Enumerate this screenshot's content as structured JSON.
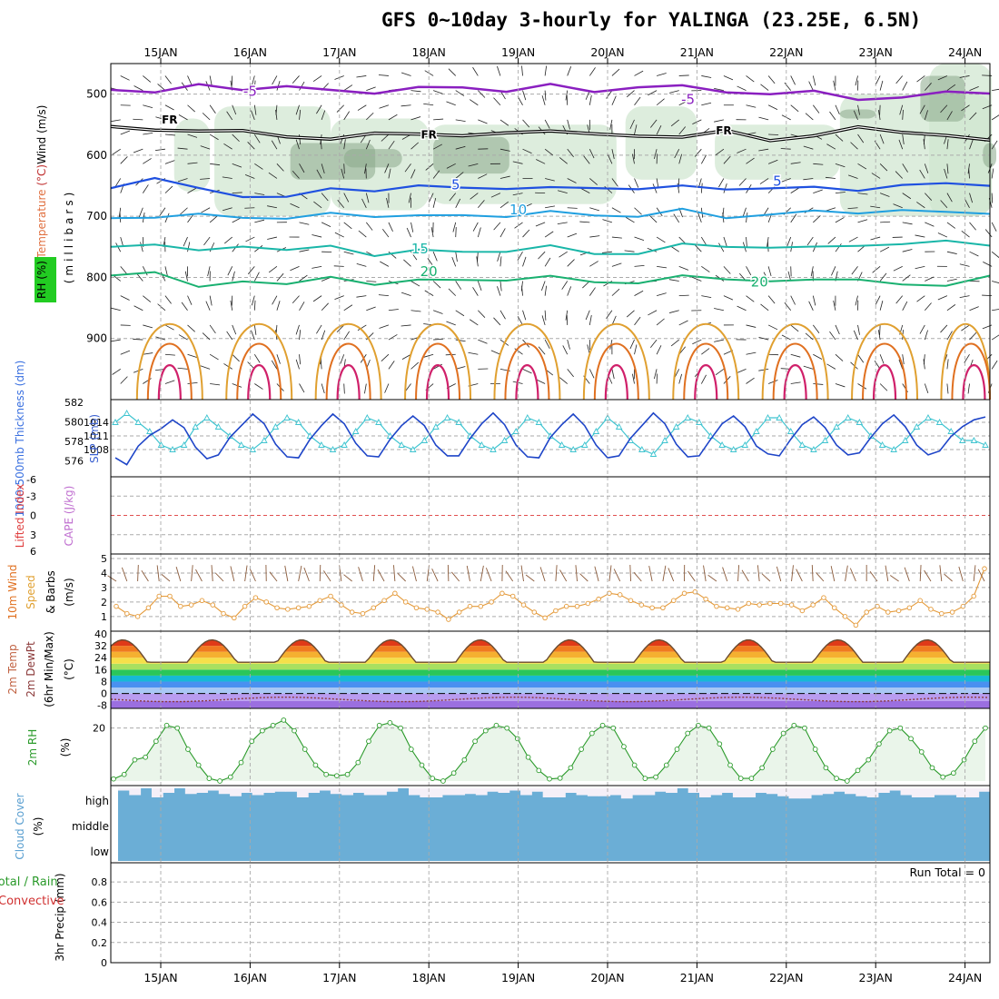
{
  "title": "GFS 0~10day 3-hourly for YALINGA (23.25E, 6.5N)",
  "chart_data": {
    "type": "meteogram",
    "days": [
      "15JAN",
      "16JAN",
      "17JAN",
      "18JAN",
      "19JAN",
      "20JAN",
      "21JAN",
      "22JAN",
      "23JAN",
      "24JAN"
    ],
    "colors": {
      "purple": "#8a1fc0",
      "black": "#000000",
      "blue": "#1f50e0",
      "lightblue": "#1f9fe0",
      "teal": "#19b6a8",
      "green": "#19b070",
      "orange": "#e0a030",
      "darkorange": "#e07020",
      "magenta": "#d0206a",
      "rhshade": "#cfe6cf",
      "rhdark": "#8aa88a",
      "slp": "#3fc4d0",
      "thick": "#1e45c8",
      "wind": "#e49a3a",
      "rh2m": "#2a9a2a",
      "cloud": "#6baed6",
      "cloudbg": "#f5f0f8",
      "refline": "#e05050"
    },
    "upper_air": {
      "ylabel_parts": [
        "RH (%)",
        "Temperature (°C)",
        "Wind (m/s)",
        "(millibars)"
      ],
      "yticks": [
        500,
        600,
        700,
        800,
        900
      ],
      "ylim": [
        1000,
        450
      ],
      "contour_labels": [
        {
          "text": "-5",
          "t": 1.0,
          "p": 503,
          "color": "purple"
        },
        {
          "text": "-5",
          "t": 5.9,
          "p": 516,
          "color": "purple"
        },
        {
          "text": "FR",
          "t": 0.1,
          "p": 548,
          "color": "black"
        },
        {
          "text": "FR",
          "t": 3.0,
          "p": 573,
          "color": "black"
        },
        {
          "text": "FR",
          "t": 6.3,
          "p": 566,
          "color": "black"
        },
        {
          "text": "5",
          "t": 3.3,
          "p": 656,
          "color": "blue"
        },
        {
          "text": "5",
          "t": 6.9,
          "p": 650,
          "color": "blue"
        },
        {
          "text": "10",
          "t": 4.0,
          "p": 697,
          "color": "lightblue"
        },
        {
          "text": "15",
          "t": 2.9,
          "p": 761,
          "color": "teal"
        },
        {
          "text": "20",
          "t": 3.0,
          "p": 798,
          "color": "green"
        },
        {
          "text": "20",
          "t": 6.7,
          "p": 815,
          "color": "green"
        }
      ],
      "isotherms": [
        {
          "color": "purple",
          "p": [
            493,
            494,
            488,
            491,
            486,
            497,
            495,
            490,
            491,
            492,
            487,
            496,
            486,
            490,
            494,
            500,
            498,
            505,
            508,
            497,
            495
          ],
          "lw": 2.5
        },
        {
          "color": "blue",
          "p": [
            654,
            634,
            658,
            666,
            667,
            658,
            655,
            651,
            655,
            651,
            656,
            653,
            653,
            654,
            653,
            654,
            655,
            654,
            651,
            647,
            646
          ],
          "lw": 2.2
        },
        {
          "color": "lightblue",
          "p": [
            703,
            699,
            700,
            700,
            703,
            698,
            697,
            700,
            700,
            697,
            695,
            698,
            698,
            692,
            700,
            697,
            694,
            691,
            692,
            694,
            692
          ],
          "lw": 2
        },
        {
          "color": "teal",
          "p": [
            750,
            743,
            760,
            747,
            754,
            752,
            761,
            756,
            760,
            754,
            751,
            761,
            759,
            749,
            747,
            751,
            753,
            744,
            748,
            741,
            744
          ],
          "lw": 2
        },
        {
          "color": "green",
          "p": [
            797,
            788,
            820,
            804,
            810,
            803,
            808,
            805,
            806,
            801,
            801,
            807,
            807,
            801,
            800,
            806,
            807,
            799,
            814,
            815,
            793
          ],
          "lw": 2
        }
      ],
      "freezing_level": [
        553,
        553,
        562,
        565,
        567,
        569,
        568,
        569,
        563,
        561,
        566,
        566,
        563,
        571,
        565,
        574,
        563,
        557,
        567,
        563,
        572
      ]
    },
    "slp_thickness": {
      "ylabel_left": "1000-500mb Thickness (dm)",
      "ylabel_right": "SLP (mb)",
      "thickness_ticks": [
        576,
        578,
        580,
        582
      ],
      "slp_ticks": [
        1008,
        1011,
        1014
      ],
      "slp": [
        1014,
        1016,
        1014,
        1012,
        1009,
        1008,
        1009,
        1013,
        1015,
        1013,
        1011,
        1009,
        1008,
        1010,
        1013,
        1015,
        1014,
        1011,
        1009,
        1008,
        1009,
        1012,
        1015,
        1014,
        1011,
        1009,
        1008,
        1010,
        1013,
        1015,
        1014,
        1011,
        1009,
        1008,
        1010,
        1012,
        1015,
        1014,
        1011,
        1009,
        1008,
        1009,
        1012,
        1015,
        1013,
        1010,
        1008,
        1007,
        1010,
        1013,
        1015,
        1014,
        1011,
        1009,
        1008,
        1009,
        1012,
        1015,
        1015,
        1012,
        1009,
        1008,
        1010,
        1013,
        1015,
        1014,
        1011,
        1009,
        1008,
        1010,
        1013,
        1015,
        1014,
        1012,
        1010,
        1010,
        1009
      ],
      "thickness": [
        576.3,
        575.6,
        577.5,
        578.6,
        579.3,
        580.2,
        579.4,
        577.4,
        576.2,
        576.6,
        578.4,
        579.6,
        580.8,
        579.8,
        577.7,
        576.4,
        576.3,
        578.2,
        579.6,
        580.8,
        579.8,
        577.8,
        576.5,
        576.4,
        578.2,
        579.6,
        580.6,
        579.6,
        577.6,
        576.5,
        576.5,
        578.3,
        579.8,
        580.9,
        579.7,
        577.6,
        576.4,
        576.3,
        578.4,
        579.7,
        580.8,
        579.6,
        577.6,
        576.3,
        576.5,
        578.3,
        579.6,
        580.9,
        579.8,
        577.7,
        576.4,
        576.5,
        578.2,
        579.8,
        580.6,
        579.5,
        577.5,
        576.7,
        576.5,
        578.2,
        579.7,
        580.5,
        579.4,
        577.6,
        576.6,
        576.8,
        578.4,
        579.8,
        580.7,
        579.5,
        577.6,
        576.6,
        577.0,
        578.5,
        579.5,
        580.2,
        580.5
      ]
    },
    "cape_li": {
      "ylabel_left": "Lifted Index",
      "ylabel_right": "CAPE (J/kg)",
      "li_ticks": [
        "-6",
        "-3",
        "0",
        "3",
        "6"
      ]
    },
    "wind10m": {
      "ylabel": [
        "10m Wind",
        "Speed",
        "& Barbs",
        "(m/s)"
      ],
      "yticks": [
        1,
        2,
        3,
        4,
        5
      ],
      "speed": [
        1.7,
        1.2,
        1.0,
        1.6,
        2.4,
        2.4,
        1.7,
        1.8,
        2.1,
        1.8,
        1.2,
        0.9,
        1.7,
        2.3,
        2.0,
        1.6,
        1.5,
        1.6,
        1.7,
        2.1,
        2.4,
        1.8,
        1.3,
        1.2,
        1.6,
        2.1,
        2.6,
        2.0,
        1.6,
        1.5,
        1.3,
        0.8,
        1.3,
        1.7,
        1.7,
        2.0,
        2.6,
        2.4,
        1.8,
        1.3,
        0.9,
        1.4,
        1.7,
        1.7,
        1.9,
        2.2,
        2.6,
        2.5,
        2.1,
        1.8,
        1.6,
        1.6,
        2.1,
        2.6,
        2.7,
        2.2,
        1.7,
        1.6,
        1.5,
        1.9,
        1.8,
        1.9,
        1.9,
        1.8,
        1.4,
        1.8,
        2.3,
        1.6,
        1.0,
        0.4,
        1.3,
        1.7,
        1.3,
        1.4,
        1.6,
        2.1,
        1.5,
        1.2,
        1.3,
        1.7,
        2.4,
        4.3
      ]
    },
    "temp2m": {
      "ylabel": [
        "2m Temp",
        "2m DewPt",
        "(6hr Min/Max)",
        "(°C)"
      ],
      "yticks": [
        -8,
        0,
        8,
        16,
        24,
        32,
        40
      ],
      "bands": [
        {
          "from": -10,
          "to": -5,
          "color": "#9b6fe0"
        },
        {
          "from": -5,
          "to": 0,
          "color": "#b99cf0"
        },
        {
          "from": 0,
          "to": 4,
          "color": "#a9c8f5"
        },
        {
          "from": 4,
          "to": 8,
          "color": "#4a90f0"
        },
        {
          "from": 8,
          "to": 12,
          "color": "#17b9d6"
        },
        {
          "from": 12,
          "to": 16,
          "color": "#2ac65a"
        },
        {
          "from": 16,
          "to": 20,
          "color": "#a8e060"
        },
        {
          "from": 20,
          "to": 24,
          "color": "#f5e04a"
        },
        {
          "from": 24,
          "to": 28,
          "color": "#f5b030"
        },
        {
          "from": 28,
          "to": 32,
          "color": "#f07a20"
        },
        {
          "from": 32,
          "to": 36,
          "color": "#e03a18"
        },
        {
          "from": 36,
          "to": 40,
          "color": "#b01010"
        }
      ]
    },
    "rh2m": {
      "ylabel": [
        "2m RH",
        "(%)"
      ],
      "yticks": [
        20
      ],
      "values": [
        0.8,
        2.5,
        8,
        9,
        15,
        21,
        20,
        12,
        6,
        1,
        0,
        1.5,
        7,
        15,
        19,
        21,
        23,
        19,
        12,
        6,
        2.5,
        2,
        2.5,
        7,
        15,
        21,
        22,
        20,
        12,
        6,
        1,
        0,
        3,
        8,
        15,
        19,
        21,
        20,
        16,
        9,
        4,
        0.8,
        1.1,
        5,
        12,
        18,
        21,
        20,
        13,
        6,
        1,
        1.5,
        6,
        12,
        18,
        21,
        20,
        14,
        6,
        1,
        1,
        5,
        12,
        18,
        21,
        20,
        12,
        5,
        1,
        0,
        4,
        8,
        14,
        19,
        20,
        16,
        11,
        5,
        1.5,
        3,
        8,
        15,
        20
      ]
    },
    "cloud": {
      "ylabel": [
        "Cloud Cover",
        "(%)"
      ],
      "levels": [
        "high",
        "middle",
        "low"
      ],
      "high": [
        90,
        70,
        100,
        60,
        80,
        100,
        75,
        80,
        90,
        75,
        65,
        80,
        70,
        80,
        85,
        85,
        60,
        80,
        90,
        75,
        70,
        80,
        70,
        70,
        85,
        100,
        70,
        60,
        60,
        70,
        70,
        75,
        70,
        85,
        80,
        90,
        70,
        85,
        60,
        60,
        80,
        70,
        65,
        65,
        70,
        55,
        70,
        70,
        85,
        80,
        100,
        80,
        60,
        70,
        80,
        60,
        60,
        80,
        75,
        65,
        55,
        55,
        70,
        75,
        85,
        75,
        65,
        60,
        80,
        90,
        70,
        60,
        60,
        70,
        70,
        60,
        60,
        85
      ]
    },
    "precip": {
      "ylabel": [
        "3hr Precip (mm)"
      ],
      "legend_left": [
        "Total / Rain",
        "Convective"
      ],
      "yticks": [
        "0",
        "0.2",
        "0.4",
        "0.6",
        "0.8"
      ],
      "run_total": "Run Total = 0"
    }
  }
}
